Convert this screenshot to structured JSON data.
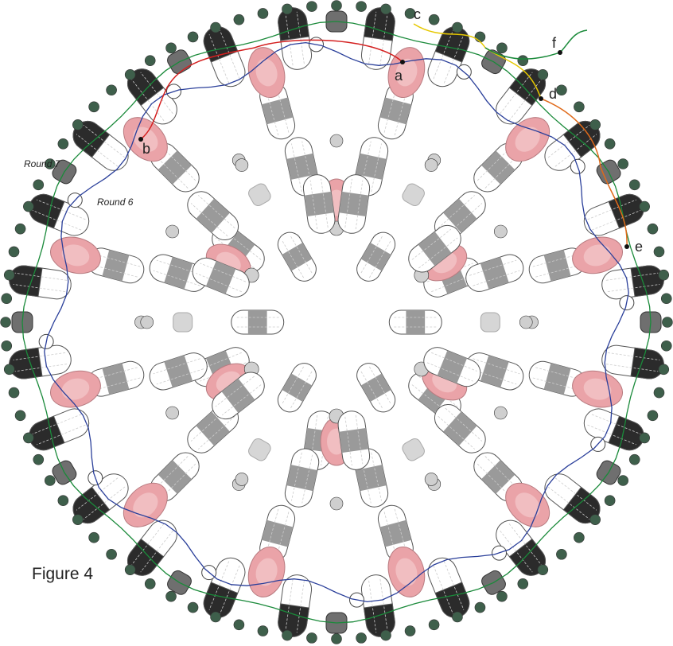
{
  "figure": {
    "caption": "Figure 4"
  },
  "rounds": {
    "round_7": "Round 7",
    "round_6": "Round 6"
  },
  "points": {
    "a": "a",
    "b": "b",
    "c": "c",
    "d": "d",
    "e": "e",
    "f": "f"
  }
}
